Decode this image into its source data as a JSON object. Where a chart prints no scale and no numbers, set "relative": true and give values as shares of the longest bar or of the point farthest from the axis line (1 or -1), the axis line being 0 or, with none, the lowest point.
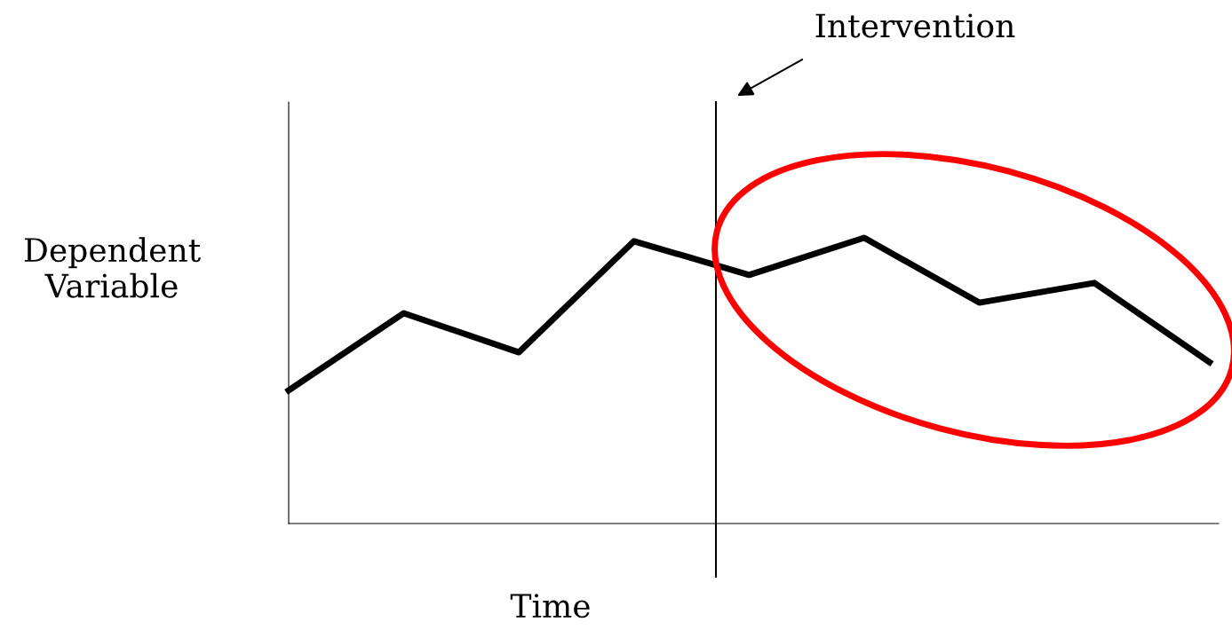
{
  "chart_data": {
    "type": "line",
    "relative": true,
    "xlabel": "Time",
    "ylabel": "Dependent\nVariable",
    "categories": [
      null,
      null,
      null,
      null,
      null,
      null,
      null,
      null,
      null
    ],
    "series": [
      {
        "color": "#000000",
        "values": [
          0.466,
          0.736,
          0.599,
          0.988,
          0.87,
          1,
          0.773,
          0.842,
          0.565
        ]
      }
    ],
    "annotations": [
      "Intervention"
    ],
    "grid": false,
    "legend": false,
    "marker": "none",
    "line_style": "solid"
  }
}
